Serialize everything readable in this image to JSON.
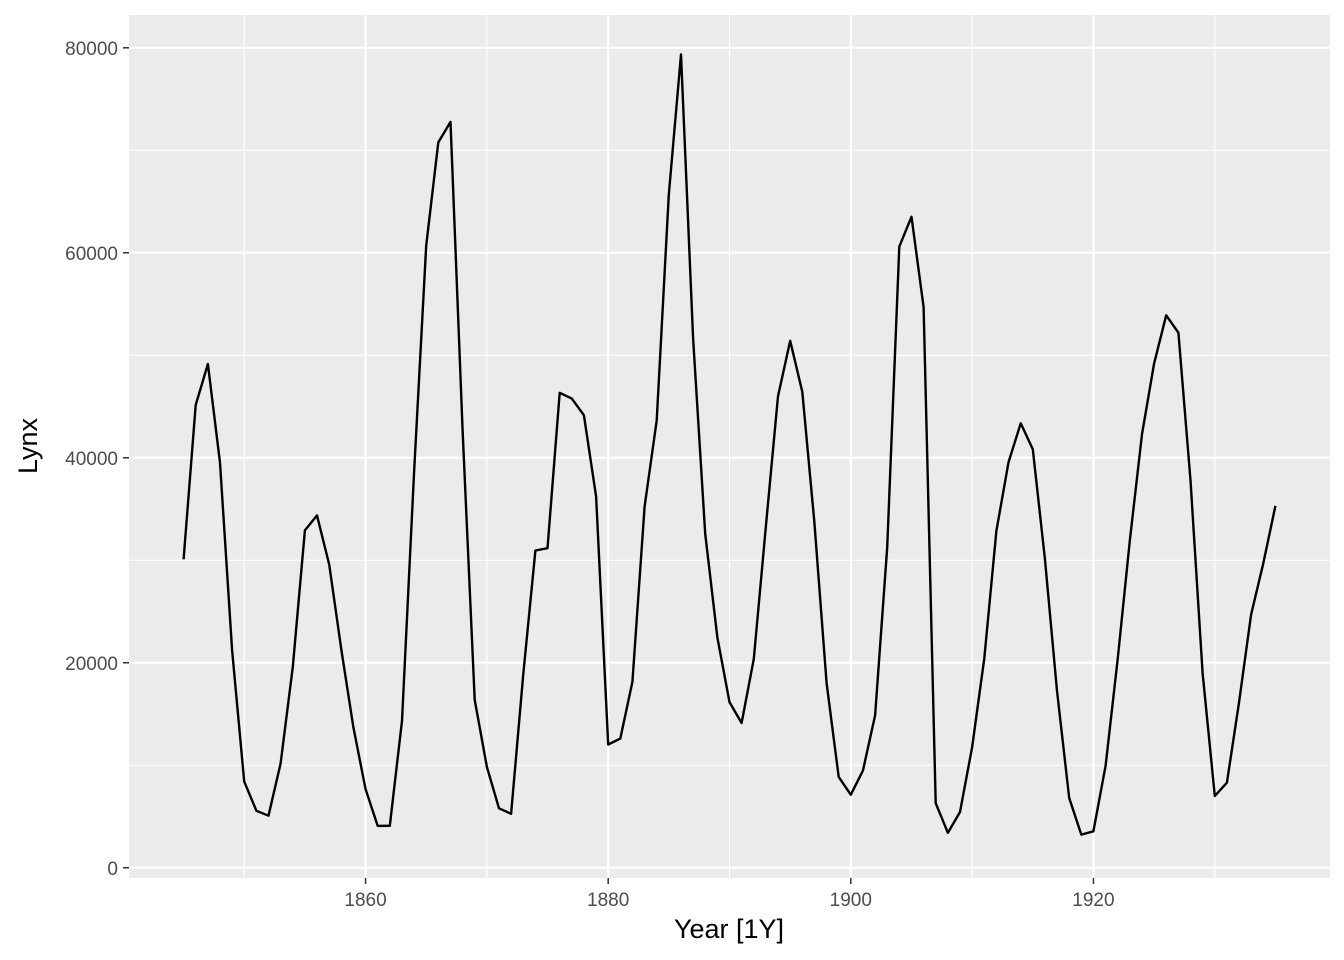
{
  "chart_data": {
    "type": "line",
    "xlabel": "Year [1Y]",
    "ylabel": "Lynx",
    "xlim": [
      1840.5,
      1939.5
    ],
    "ylim": [
      -1000,
      83200
    ],
    "x_ticks": [
      1860,
      1880,
      1900,
      1920
    ],
    "x_tick_labels": [
      "1860",
      "1880",
      "1900",
      "1920"
    ],
    "y_ticks": [
      0,
      20000,
      40000,
      60000,
      80000
    ],
    "y_tick_labels": [
      "0",
      "20000",
      "40000",
      "60000",
      "80000"
    ],
    "grid": true,
    "legend": "none",
    "colors": {
      "panel_background": "#ebebeb",
      "grid": "#ffffff",
      "line": "#000000",
      "tick_label": "#4d4d4d",
      "axis_title": "#000000"
    },
    "series": [
      {
        "x": [
          1845,
          1846,
          1847,
          1848,
          1849,
          1850,
          1851,
          1852,
          1853,
          1854,
          1855,
          1856,
          1857,
          1858,
          1859,
          1860,
          1861,
          1862,
          1863,
          1864,
          1865,
          1866,
          1867,
          1868,
          1869,
          1870,
          1871,
          1872,
          1873,
          1874,
          1875,
          1876,
          1877,
          1878,
          1879,
          1880,
          1881,
          1882,
          1883,
          1884,
          1885,
          1886,
          1887,
          1888,
          1889,
          1890,
          1891,
          1892,
          1893,
          1894,
          1895,
          1896,
          1897,
          1898,
          1899,
          1900,
          1901,
          1902,
          1903,
          1904,
          1905,
          1906,
          1907,
          1908,
          1909,
          1910,
          1911,
          1912,
          1913,
          1914,
          1915,
          1916,
          1917,
          1918,
          1919,
          1920,
          1921,
          1922,
          1923,
          1924,
          1925,
          1926,
          1927,
          1928,
          1929,
          1930,
          1931,
          1932,
          1933,
          1934,
          1935
        ],
        "values": [
          30090,
          45150,
          49150,
          39520,
          21230,
          8420,
          5560,
          5080,
          10170,
          19600,
          32910,
          34380,
          29590,
          21300,
          13690,
          7650,
          4080,
          4090,
          14330,
          38640,
          60700,
          70770,
          72770,
          42680,
          16390,
          9830,
          5800,
          5260,
          18910,
          30950,
          31180,
          46340,
          45770,
          44150,
          36230,
          12030,
          12600,
          18130,
          35240,
          43640,
          65670,
          79350,
          51650,
          32590,
          22450,
          16160,
          14120,
          20380,
          33330,
          46000,
          51410,
          46430,
          33680,
          18010,
          8860,
          7130,
          9470,
          14860,
          31250,
          60600,
          63510,
          54700,
          6300,
          3410,
          5440,
          11740,
          20440,
          32880,
          39550,
          43360,
          40830,
          30150,
          17260,
          6810,
          3230,
          3560,
          9960,
          20370,
          31900,
          42300,
          49200,
          53900,
          52200,
          37800,
          19000,
          7000,
          8300,
          16100,
          24700,
          29700,
          35300
        ]
      }
    ]
  }
}
